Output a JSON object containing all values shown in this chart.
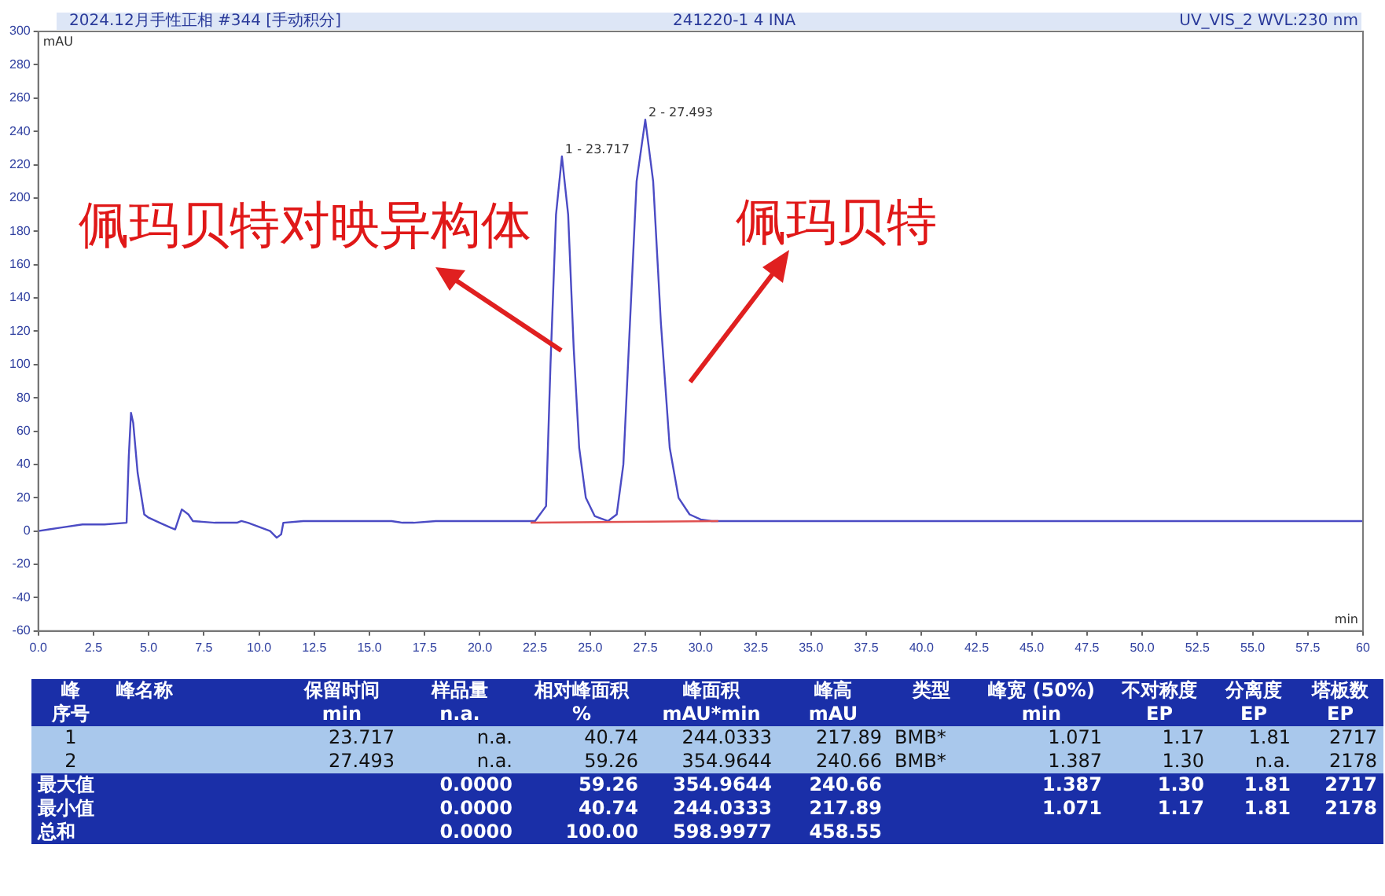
{
  "chart_data": {
    "type": "line",
    "xlabel": "min",
    "ylabel": "mAU",
    "xlim": [
      0,
      60
    ],
    "ylim": [
      -60,
      300
    ],
    "xticks": [
      {
        "value": 0,
        "label": "0.0"
      },
      {
        "value": 2.5,
        "label": "2.5"
      },
      {
        "value": 5,
        "label": "5.0"
      },
      {
        "value": 7.5,
        "label": "7.5"
      },
      {
        "value": 10,
        "label": "10.0"
      },
      {
        "value": 12.5,
        "label": "12.5"
      },
      {
        "value": 15,
        "label": "15.0"
      },
      {
        "value": 17.5,
        "label": "17.5"
      },
      {
        "value": 20,
        "label": "20.0"
      },
      {
        "value": 22.5,
        "label": "22.5"
      },
      {
        "value": 25,
        "label": "25.0"
      },
      {
        "value": 27.5,
        "label": "27.5"
      },
      {
        "value": 30,
        "label": "30.0"
      },
      {
        "value": 32.5,
        "label": "32.5"
      },
      {
        "value": 35,
        "label": "35.0"
      },
      {
        "value": 37.5,
        "label": "37.5"
      },
      {
        "value": 40,
        "label": "40.0"
      },
      {
        "value": 42.5,
        "label": "42.5"
      },
      {
        "value": 45,
        "label": "45.0"
      },
      {
        "value": 47.5,
        "label": "47.5"
      },
      {
        "value": 50,
        "label": "50.0"
      },
      {
        "value": 52.5,
        "label": "52.5"
      },
      {
        "value": 55,
        "label": "55.0"
      },
      {
        "value": 57.5,
        "label": "57.5"
      },
      {
        "value": 60,
        "label": "60"
      }
    ],
    "yticks": [
      -60,
      -40,
      -20,
      0,
      20,
      40,
      60,
      80,
      100,
      120,
      140,
      160,
      180,
      200,
      220,
      240,
      260,
      280,
      300
    ],
    "grid": false,
    "legend": false,
    "marker": "none",
    "line_style": "solid",
    "series": [
      {
        "color": "#4b4bc4",
        "x": [
          0,
          0.5,
          1,
          2,
          3,
          4,
          4.1,
          4.2,
          4.3,
          4.5,
          4.8,
          5,
          5.5,
          6,
          6.2,
          6.5,
          6.8,
          7,
          8,
          9,
          9.2,
          9.5,
          10.5,
          10.8,
          11,
          11.1,
          12,
          14,
          16,
          16.5,
          17,
          18,
          20,
          22,
          22.5,
          23,
          23.2,
          23.45,
          23.717,
          24,
          24.25,
          24.5,
          24.8,
          25.2,
          25.8,
          26.2,
          26.5,
          26.8,
          27.1,
          27.493,
          27.85,
          28.2,
          28.6,
          29,
          29.5,
          30,
          30.5,
          32,
          35,
          40,
          45,
          50,
          55,
          60
        ],
        "values": [
          0,
          1,
          2,
          4,
          4,
          5,
          45,
          71,
          65,
          35,
          10,
          8,
          5,
          2,
          1,
          13,
          10,
          6,
          5,
          5,
          6,
          5,
          0,
          -4,
          -2,
          5,
          6,
          6,
          6,
          5,
          5,
          6,
          6,
          6,
          6,
          15,
          100,
          190,
          225,
          190,
          110,
          50,
          20,
          9,
          6,
          10,
          40,
          125,
          210,
          247,
          210,
          125,
          50,
          20,
          10,
          7,
          6,
          6,
          6,
          6,
          6,
          6,
          6,
          6
        ]
      },
      {
        "color": "#e05050",
        "x": [
          22.3,
          30.8
        ],
        "values": [
          5,
          6
        ]
      }
    ],
    "annotations": [
      "2024.12月手性正相 #344 [手动积分]",
      "241220-1 4 INA",
      "UV_VIS_2 WVL:230 nm",
      {
        "text": "1 - 23.717",
        "x": 23.717,
        "y": 225
      },
      {
        "text": "2 - 27.493",
        "x": 27.493,
        "y": 247
      },
      "佩玛贝特对映异构体",
      "佩玛贝特",
      "峰",
      "峰名称",
      "保留时间",
      "样品量",
      "相对峰面积",
      "峰面积",
      "峰高",
      "类型",
      "峰宽 (50%)",
      "不对称度",
      "分离度",
      "塔板数",
      "序号",
      "min",
      "n.a.",
      "%",
      "mAU*min",
      "mAU",
      "min",
      "EP",
      "EP",
      "EP",
      "1",
      "23.717",
      "n.a.",
      "40.74",
      "244.0333",
      "217.89",
      "BMB*",
      "1.071",
      "1.17",
      "1.81",
      "2717",
      "2",
      "27.493",
      "n.a.",
      "59.26",
      "354.9644",
      "240.66",
      "BMB*",
      "1.387",
      "1.30",
      "n.a.",
      "2178",
      "最大值",
      "0.0000",
      "59.26",
      "354.9644",
      "240.66",
      "1.387",
      "1.30",
      "1.81",
      "2717",
      "最小值",
      "0.0000",
      "40.74",
      "244.0333",
      "217.89",
      "1.071",
      "1.17",
      "1.81",
      "2178",
      "总和",
      "0.0000",
      "100.00",
      "598.9977",
      "458.55"
    ]
  }
}
